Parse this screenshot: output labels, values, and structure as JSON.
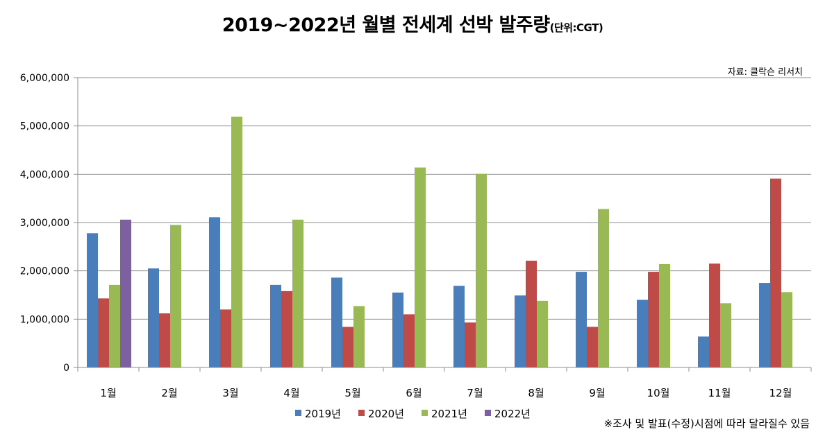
{
  "title": {
    "main": "2019~2022년 월별 전세계 선박 발주량",
    "unit": "(단위:CGT)"
  },
  "source_note": "자료: 클락슨 리서치",
  "footnote": "※조사 및 발표(수정)시점에 따라 달라질수 있음",
  "chart_data": {
    "type": "bar",
    "title": "2019~2022년 월별 전세계 선박 발주량",
    "xlabel": "",
    "ylabel": "",
    "ylim": [
      0,
      6000000
    ],
    "yticks": [
      0,
      1000000,
      2000000,
      3000000,
      4000000,
      5000000,
      6000000
    ],
    "ytick_labels": [
      "0",
      "1,000,000",
      "2,000,000",
      "3,000,000",
      "4,000,000",
      "5,000,000",
      "6,000,000"
    ],
    "grid": true,
    "legend_position": "bottom",
    "categories": [
      "1월",
      "2월",
      "3월",
      "4월",
      "5월",
      "6월",
      "7월",
      "8월",
      "9월",
      "10월",
      "11월",
      "12월"
    ],
    "series": [
      {
        "name": "2019년",
        "color": "#4a7ebb",
        "values": [
          2780000,
          2050000,
          3110000,
          1710000,
          1860000,
          1550000,
          1690000,
          1490000,
          1980000,
          1400000,
          640000,
          1750000
        ]
      },
      {
        "name": "2020년",
        "color": "#be4b48",
        "values": [
          1430000,
          1120000,
          1200000,
          1580000,
          840000,
          1100000,
          930000,
          2210000,
          840000,
          1980000,
          2150000,
          3910000
        ]
      },
      {
        "name": "2021년",
        "color": "#98b954",
        "values": [
          1710000,
          2950000,
          5190000,
          3060000,
          1270000,
          4140000,
          4010000,
          1380000,
          3280000,
          2140000,
          1330000,
          1560000
        ]
      },
      {
        "name": "2022년",
        "color": "#7d60a0",
        "values": [
          3060000,
          null,
          null,
          null,
          null,
          null,
          null,
          null,
          null,
          null,
          null,
          null
        ]
      }
    ]
  }
}
